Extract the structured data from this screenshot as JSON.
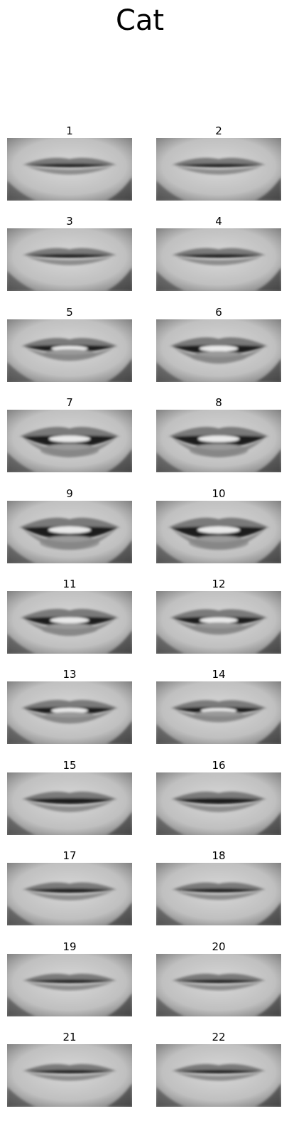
{
  "title": "Cat",
  "frames": [
    {
      "label": "1",
      "open": 0.08
    },
    {
      "label": "2",
      "open": 0.08
    },
    {
      "label": "3",
      "open": 0.1
    },
    {
      "label": "4",
      "open": 0.1
    },
    {
      "label": "5",
      "open": 0.45
    },
    {
      "label": "6",
      "open": 0.65
    },
    {
      "label": "7",
      "open": 0.9
    },
    {
      "label": "8",
      "open": 0.9
    },
    {
      "label": "9",
      "open": 1.0
    },
    {
      "label": "10",
      "open": 1.0
    },
    {
      "label": "11",
      "open": 0.7
    },
    {
      "label": "12",
      "open": 0.6
    },
    {
      "label": "13",
      "open": 0.5
    },
    {
      "label": "14",
      "open": 0.4
    },
    {
      "label": "15",
      "open": 0.3
    },
    {
      "label": "16",
      "open": 0.3
    },
    {
      "label": "17",
      "open": 0.15
    },
    {
      "label": "18",
      "open": 0.12
    },
    {
      "label": "19",
      "open": 0.08
    },
    {
      "label": "20",
      "open": 0.08
    },
    {
      "label": "21",
      "open": 0.08
    },
    {
      "label": "22",
      "open": 0.08
    }
  ]
}
